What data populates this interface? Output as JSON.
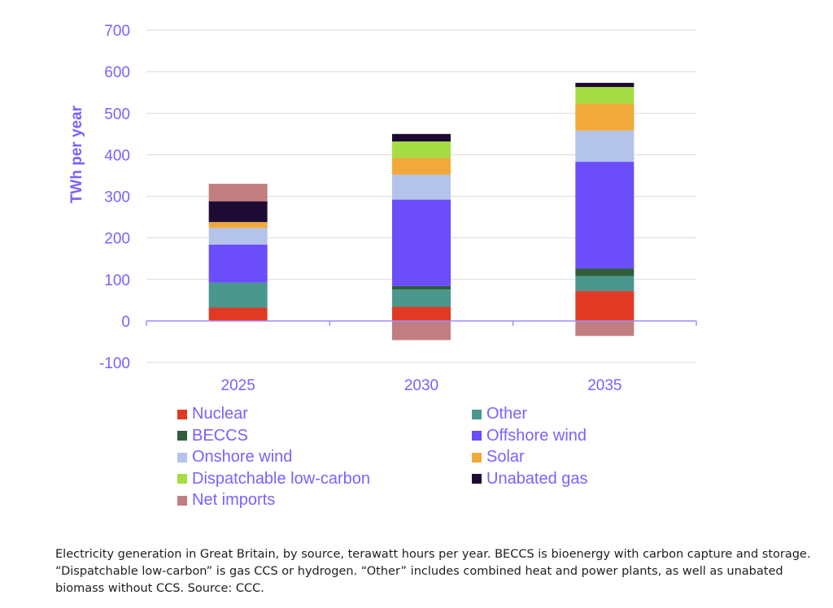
{
  "chart_data": {
    "type": "bar",
    "stacked": true,
    "categories": [
      "2025",
      "2030",
      "2035"
    ],
    "ylabel": "TWh per year",
    "xlabel": "",
    "ylim": [
      -100,
      700
    ],
    "yticks": [
      "700",
      "600",
      "500",
      "400",
      "300",
      "200",
      "100",
      "0",
      "-100"
    ],
    "grid": true,
    "legend_position": "bottom",
    "series": [
      {
        "name": "Nuclear",
        "color": "#e03a24",
        "values": [
          32,
          34,
          72
        ]
      },
      {
        "name": "Other",
        "color": "#4a978e",
        "values": [
          60,
          42,
          36
        ]
      },
      {
        "name": "BECCS",
        "color": "#2f5e3a",
        "values": [
          0,
          8,
          18
        ]
      },
      {
        "name": "Offshore wind",
        "color": "#6b4dfa",
        "values": [
          92,
          208,
          257
        ]
      },
      {
        "name": "Onshore wind",
        "color": "#b3c3ea",
        "values": [
          40,
          60,
          75
        ]
      },
      {
        "name": "Solar",
        "color": "#f0a93a",
        "values": [
          14,
          40,
          65
        ]
      },
      {
        "name": "Dispatchable low-carbon",
        "color": "#a6dc44",
        "values": [
          0,
          40,
          40
        ]
      },
      {
        "name": "Unabated gas",
        "color": "#1e0b33",
        "values": [
          50,
          18,
          10
        ]
      },
      {
        "name": "Net imports",
        "color": "#c27d80",
        "values": [
          42,
          -46,
          -36
        ]
      }
    ]
  },
  "caption": "Electricity generation in Great Britain, by source, terawatt hours per year. BECCS is bioenergy with carbon capture and storage. “Dispatchable low-carbon” is gas CCS or hydrogen. “Other” includes combined heat and power plants, as well as unabated biomass without CCS. Source: CCC."
}
